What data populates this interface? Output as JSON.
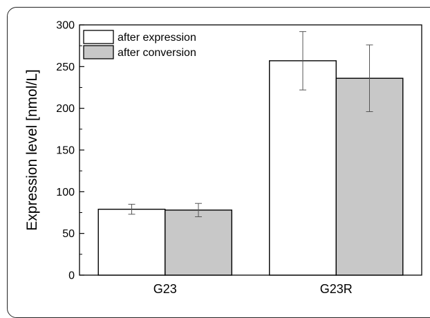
{
  "chart_data": {
    "type": "bar",
    "categories": [
      "G23",
      "G23R"
    ],
    "series": [
      {
        "name": "after expression",
        "values": [
          79,
          257
        ],
        "errors": [
          6,
          35
        ],
        "color": "#ffffff"
      },
      {
        "name": "after conversion",
        "values": [
          78,
          236
        ],
        "errors": [
          8,
          40
        ],
        "color": "#c8c8c8"
      }
    ],
    "ylabel": "Expression level [nmol/L]",
    "xlabel": "",
    "ylim": [
      0,
      300
    ],
    "yticks": [
      "0",
      "50",
      "100",
      "150",
      "200",
      "250",
      "300"
    ],
    "legend_position": "top-left",
    "grid": false
  }
}
